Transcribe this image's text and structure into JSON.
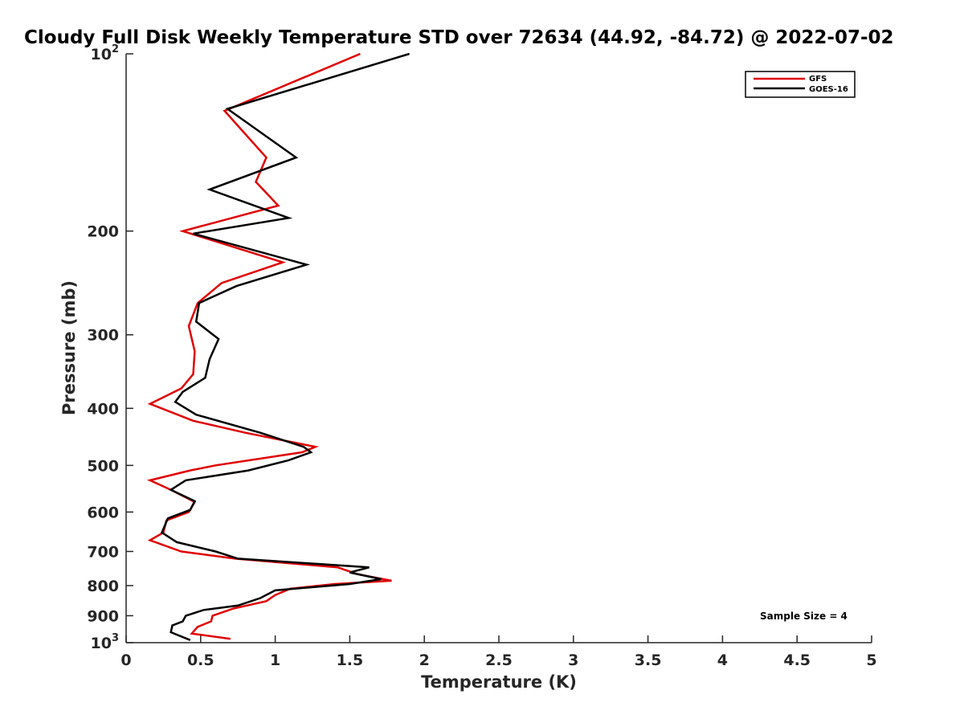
{
  "chart_data": {
    "type": "line",
    "title": "Cloudy Full Disk Weekly Temperature STD over 72634 (44.92, -84.72) @ 2022-07-02",
    "xlabel": "Temperature (K)",
    "ylabel": "Pressure (mb)",
    "xlim": [
      0,
      5
    ],
    "ylim": [
      100,
      1000
    ],
    "yscale": "log",
    "y_reversed": true,
    "x_ticks": [
      0,
      0.5,
      1,
      1.5,
      2,
      2.5,
      3,
      3.5,
      4,
      4.5,
      5
    ],
    "x_tick_labels": [
      "0",
      "0.5",
      "1",
      "1.5",
      "2",
      "2.5",
      "3",
      "3.5",
      "4",
      "4.5",
      "5"
    ],
    "y_ticks": [
      100,
      200,
      300,
      400,
      500,
      600,
      700,
      800,
      900,
      1000
    ],
    "y_tick_labels": [
      {
        "base": "10",
        "exp": "2"
      },
      {
        "base": "200",
        "exp": ""
      },
      {
        "base": "300",
        "exp": ""
      },
      {
        "base": "400",
        "exp": ""
      },
      {
        "base": "500",
        "exp": ""
      },
      {
        "base": "600",
        "exp": ""
      },
      {
        "base": "700",
        "exp": ""
      },
      {
        "base": "800",
        "exp": ""
      },
      {
        "base": "900",
        "exp": ""
      },
      {
        "base": "10",
        "exp": "3"
      }
    ],
    "grid": false,
    "legend_position": "top-right",
    "series": [
      {
        "name": "GFS",
        "color": "#e00000",
        "points": [
          [
            1.57,
            100
          ],
          [
            0.66,
            125
          ],
          [
            0.94,
            150
          ],
          [
            0.87,
            165
          ],
          [
            1.02,
            181
          ],
          [
            0.38,
            200
          ],
          [
            1.05,
            226
          ],
          [
            0.64,
            245
          ],
          [
            0.48,
            265
          ],
          [
            0.42,
            290
          ],
          [
            0.46,
            320
          ],
          [
            0.45,
            350
          ],
          [
            0.37,
            370
          ],
          [
            0.16,
            393
          ],
          [
            0.45,
            420
          ],
          [
            0.8,
            440
          ],
          [
            1.27,
            465
          ],
          [
            1.18,
            475
          ],
          [
            0.6,
            500
          ],
          [
            0.43,
            510
          ],
          [
            0.16,
            530
          ],
          [
            0.3,
            550
          ],
          [
            0.46,
            577
          ],
          [
            0.42,
            600
          ],
          [
            0.27,
            620
          ],
          [
            0.25,
            650
          ],
          [
            0.16,
            670
          ],
          [
            0.37,
            700
          ],
          [
            0.73,
            720
          ],
          [
            1.42,
            745
          ],
          [
            1.55,
            765
          ],
          [
            1.78,
            785
          ],
          [
            1.4,
            795
          ],
          [
            1.1,
            810
          ],
          [
            1.0,
            830
          ],
          [
            0.94,
            850
          ],
          [
            0.72,
            875
          ],
          [
            0.58,
            900
          ],
          [
            0.57,
            920
          ],
          [
            0.48,
            940
          ],
          [
            0.44,
            965
          ],
          [
            0.7,
            985
          ]
        ]
      },
      {
        "name": "GOES-16",
        "color": "#000000",
        "points": [
          [
            1.9,
            100
          ],
          [
            0.68,
            124
          ],
          [
            1.14,
            150
          ],
          [
            0.56,
            170
          ],
          [
            1.09,
            190
          ],
          [
            0.45,
            202
          ],
          [
            1.21,
            228
          ],
          [
            0.74,
            248
          ],
          [
            0.49,
            265
          ],
          [
            0.47,
            285
          ],
          [
            0.62,
            305
          ],
          [
            0.56,
            330
          ],
          [
            0.53,
            355
          ],
          [
            0.38,
            375
          ],
          [
            0.33,
            390
          ],
          [
            0.47,
            410
          ],
          [
            0.9,
            440
          ],
          [
            1.19,
            465
          ],
          [
            1.24,
            475
          ],
          [
            1.09,
            490
          ],
          [
            0.82,
            510
          ],
          [
            0.4,
            530
          ],
          [
            0.3,
            550
          ],
          [
            0.46,
            575
          ],
          [
            0.43,
            595
          ],
          [
            0.28,
            615
          ],
          [
            0.24,
            650
          ],
          [
            0.34,
            675
          ],
          [
            0.6,
            700
          ],
          [
            0.75,
            720
          ],
          [
            1.63,
            745
          ],
          [
            1.5,
            760
          ],
          [
            1.71,
            780
          ],
          [
            1.5,
            795
          ],
          [
            1.0,
            815
          ],
          [
            0.9,
            840
          ],
          [
            0.75,
            865
          ],
          [
            0.52,
            880
          ],
          [
            0.4,
            900
          ],
          [
            0.38,
            920
          ],
          [
            0.31,
            935
          ],
          [
            0.3,
            960
          ],
          [
            0.43,
            990
          ]
        ]
      }
    ],
    "annotations": [
      "Sample Size = 4"
    ]
  }
}
